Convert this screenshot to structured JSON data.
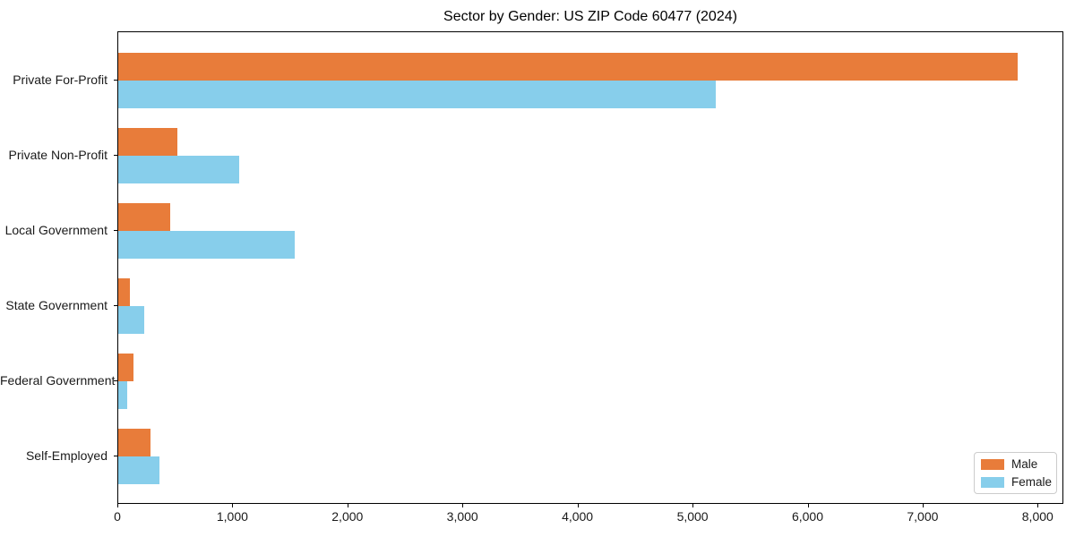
{
  "title": "Sector by Gender: US ZIP Code 60477 (2024)",
  "chart_data": {
    "type": "bar",
    "orientation": "horizontal",
    "title": "Sector by Gender: US ZIP Code 60477 (2024)",
    "categories": [
      "Private For-Profit",
      "Private Non-Profit",
      "Local Government",
      "State Government",
      "Federal Government",
      "Self-Employed"
    ],
    "series": [
      {
        "name": "Male",
        "color": "#E87C3A",
        "values": [
          7820,
          510,
          455,
          100,
          130,
          280
        ]
      },
      {
        "name": "Female",
        "color": "#87CEEB",
        "values": [
          5190,
          1050,
          1530,
          225,
          80,
          355
        ]
      }
    ],
    "xlabel": "",
    "ylabel": "",
    "xlim": [
      0,
      8000
    ],
    "x_ticks": [
      0,
      1000,
      2000,
      3000,
      4000,
      5000,
      6000,
      7000,
      8000
    ],
    "x_tick_labels": [
      "0",
      "1,000",
      "2,000",
      "3,000",
      "4,000",
      "5,000",
      "6,000",
      "7,000",
      "8,000"
    ],
    "grid": false,
    "legend": {
      "position": "lower right",
      "items": [
        "Male",
        "Female"
      ]
    },
    "colors": {
      "male": "#E87C3A",
      "female": "#87CEEB",
      "axis": "#000000",
      "text": "#1a1a1a",
      "legend_border": "#cccccc",
      "background": "#ffffff"
    }
  }
}
